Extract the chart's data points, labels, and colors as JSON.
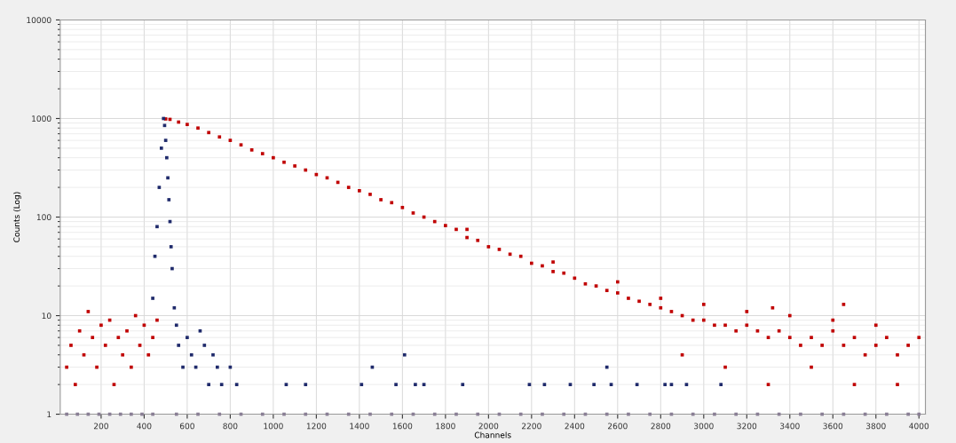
{
  "chart_data": {
    "type": "scatter",
    "xlabel": "Channels",
    "ylabel": "Counts (Log)",
    "log": "y",
    "grid": true,
    "marker": "square",
    "xlim": [
      10,
      4030
    ],
    "xticks": [
      200,
      400,
      600,
      800,
      1000,
      1200,
      1400,
      1600,
      1800,
      2000,
      2200,
      2400,
      2600,
      2800,
      3000,
      3200,
      3400,
      3600,
      3800,
      4000
    ],
    "ylim": [
      1,
      10000
    ],
    "yticks": [
      1,
      10,
      100,
      1000,
      10000
    ],
    "series": [
      {
        "color": "#c00000",
        "x": [
          40,
          60,
          80,
          100,
          120,
          140,
          160,
          180,
          200,
          220,
          240,
          260,
          280,
          300,
          320,
          340,
          360,
          380,
          400,
          420,
          440,
          460,
          500,
          520,
          560,
          600,
          650,
          700,
          750,
          800,
          850,
          900,
          950,
          1000,
          1050,
          1100,
          1150,
          1200,
          1250,
          1300,
          1350,
          1400,
          1450,
          1500,
          1550,
          1600,
          1650,
          1700,
          1750,
          1800,
          1850,
          1900,
          1950,
          2000,
          2050,
          2100,
          2150,
          2200,
          2250,
          2300,
          2350,
          2400,
          2450,
          2500,
          2550,
          2600,
          2650,
          2700,
          2750,
          2800,
          2850,
          2900,
          2950,
          3000,
          3050,
          3100,
          3150,
          3200,
          3250,
          3300,
          3350,
          3400,
          3450,
          3500,
          3550,
          3600,
          3650,
          3700,
          3750,
          3800,
          3850,
          3900,
          3950,
          4000,
          1900,
          2300,
          2600,
          2800,
          3000,
          3200,
          3400,
          3600,
          3800,
          2900,
          3100,
          3300,
          3500,
          3700,
          3900,
          3320,
          3650
        ],
        "values": [
          3,
          5,
          2,
          7,
          4,
          11,
          6,
          3,
          8,
          5,
          9,
          2,
          6,
          4,
          7,
          3,
          10,
          5,
          8,
          4,
          6,
          9,
          990,
          980,
          920,
          870,
          800,
          720,
          650,
          600,
          540,
          480,
          440,
          400,
          360,
          330,
          300,
          270,
          250,
          225,
          200,
          185,
          170,
          150,
          140,
          125,
          110,
          100,
          90,
          82,
          75,
          62,
          58,
          50,
          47,
          42,
          40,
          34,
          32,
          28,
          27,
          24,
          21,
          20,
          18,
          17,
          15,
          14,
          13,
          12,
          11,
          10,
          9,
          9,
          8,
          8,
          7,
          8,
          7,
          6,
          7,
          6,
          5,
          6,
          5,
          7,
          5,
          6,
          4,
          5,
          6,
          4,
          5,
          6,
          75,
          35,
          22,
          15,
          13,
          11,
          10,
          9,
          8,
          4,
          3,
          2,
          3,
          2,
          2,
          12,
          13
        ]
      },
      {
        "color": "#1f2a6b",
        "x": [
          440,
          450,
          460,
          470,
          480,
          490,
          495,
          500,
          505,
          510,
          515,
          520,
          525,
          530,
          540,
          550,
          560,
          580,
          600,
          620,
          640,
          660,
          680,
          700,
          720,
          740,
          760,
          800,
          830,
          1060,
          1150,
          1410,
          1460,
          1570,
          1610,
          1660,
          1700,
          1880,
          2190,
          2260,
          2380,
          2490,
          2550,
          2570,
          2690,
          2820,
          2850,
          2920,
          3080
        ],
        "values": [
          15,
          40,
          80,
          200,
          500,
          1000,
          850,
          600,
          400,
          250,
          150,
          90,
          50,
          30,
          12,
          8,
          5,
          3,
          6,
          4,
          3,
          7,
          5,
          2,
          4,
          3,
          2,
          3,
          2,
          2,
          2,
          2,
          3,
          2,
          4,
          2,
          2,
          2,
          2,
          2,
          2,
          2,
          3,
          2,
          2,
          2,
          2,
          2,
          2
        ]
      },
      {
        "color": "#8a7f95",
        "x": [
          40,
          90,
          140,
          190,
          240,
          290,
          340,
          390,
          440,
          550,
          650,
          750,
          850,
          950,
          1050,
          1150,
          1250,
          1350,
          1450,
          1550,
          1650,
          1750,
          1850,
          1950,
          2050,
          2150,
          2250,
          2350,
          2450,
          2550,
          2650,
          2750,
          2850,
          2950,
          3050,
          3150,
          3250,
          3350,
          3450,
          3550,
          3650,
          3750,
          3850,
          3950,
          4000
        ],
        "values": [
          1,
          1,
          1,
          1,
          1,
          1,
          1,
          1,
          1,
          1,
          1,
          1,
          1,
          1,
          1,
          1,
          1,
          1,
          1,
          1,
          1,
          1,
          1,
          1,
          1,
          1,
          1,
          1,
          1,
          1,
          1,
          1,
          1,
          1,
          1,
          1,
          1,
          1,
          1,
          1,
          1,
          1,
          1,
          1,
          1
        ]
      }
    ]
  }
}
